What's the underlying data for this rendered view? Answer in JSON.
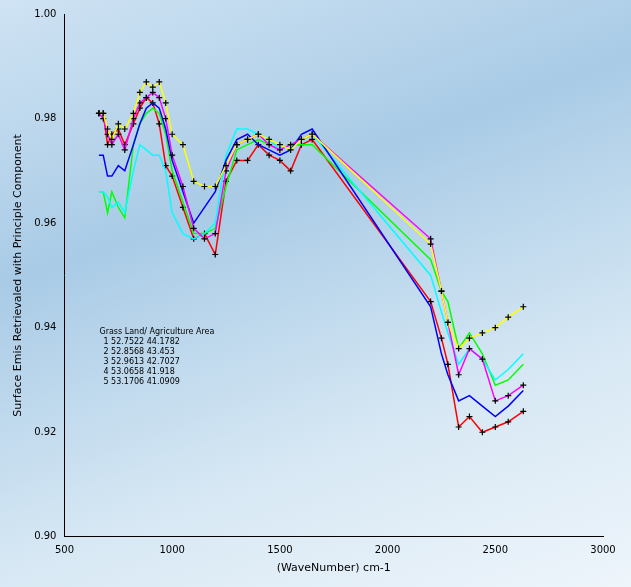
{
  "chart_data": {
    "type": "line",
    "x_label": "(WaveNumber) cm-1",
    "y_label": "Surface Emis Retrievaled with Principle Component",
    "legend_title": "Grass Land/ Agriculture Area",
    "legend": "lower left",
    "grid": false,
    "xlim": [
      500,
      3000
    ],
    "xticks": [
      500,
      1000,
      1500,
      2000,
      2500,
      3000
    ],
    "ylim": [
      0.9,
      1.0
    ],
    "yticks": [
      {
        "value": 0.9,
        "label": "0.90"
      },
      {
        "value": 0.92,
        "label": "0.92"
      },
      {
        "value": 0.94,
        "label": "0.94"
      },
      {
        "value": 0.96,
        "label": "0.96"
      },
      {
        "value": 0.98,
        "label": "0.98"
      },
      {
        "value": 1.0,
        "label": "1.00"
      }
    ],
    "x": [
      660,
      680,
      700,
      720,
      750,
      780,
      820,
      850,
      880,
      910,
      940,
      970,
      1000,
      1050,
      1100,
      1150,
      1200,
      1250,
      1300,
      1350,
      1400,
      1450,
      1500,
      1550,
      1600,
      1650,
      2200,
      2250,
      2280,
      2330,
      2380,
      2440,
      2500,
      2560,
      2630
    ],
    "series": [
      {
        "name": "1 52.7522 44.1782",
        "color": "#ffff00",
        "marker": "plus",
        "values": [
          0.981,
          0.981,
          0.978,
          0.976,
          0.979,
          0.978,
          0.981,
          0.985,
          0.987,
          0.986,
          0.987,
          0.983,
          0.977,
          0.975,
          0.968,
          0.967,
          0.967,
          0.971,
          0.975,
          0.976,
          0.977,
          0.976,
          0.975,
          0.974,
          0.976,
          0.977,
          0.956,
          0.947,
          0.941,
          0.936,
          0.938,
          0.939,
          0.94,
          0.942,
          0.944
        ]
      },
      {
        "name": "2 52.8568 43.453",
        "color": "#ff00ff",
        "marker": "plus",
        "values": [
          0.981,
          0.98,
          0.977,
          0.975,
          0.977,
          0.974,
          0.98,
          0.983,
          0.984,
          0.985,
          0.984,
          0.98,
          0.973,
          0.967,
          0.959,
          0.957,
          0.958,
          0.97,
          0.975,
          0.976,
          0.977,
          0.975,
          0.974,
          0.975,
          0.976,
          0.977,
          0.957,
          0.947,
          0.941,
          0.931,
          0.936,
          0.934,
          0.926,
          0.927,
          0.929
        ]
      },
      {
        "name": "3 52.9613 42.7027",
        "color": "#0000ff",
        "marker": "none",
        "values": [
          0.973,
          0.973,
          0.969,
          0.969,
          0.971,
          0.97,
          0.975,
          0.979,
          0.982,
          0.983,
          0.982,
          0.978,
          0.972,
          0.966,
          0.96,
          0.963,
          0.966,
          0.972,
          0.976,
          0.977,
          0.975,
          0.974,
          0.973,
          0.974,
          0.977,
          0.978,
          0.944,
          0.935,
          0.931,
          0.926,
          0.927,
          0.925,
          0.923,
          0.925,
          0.928
        ]
      },
      {
        "name": "4 53.0658 41.918",
        "color": "#00ffff",
        "marker": "none",
        "values": [
          0.966,
          0.966,
          0.965,
          0.963,
          0.964,
          0.962,
          0.97,
          0.975,
          0.974,
          0.973,
          0.973,
          0.97,
          0.962,
          0.958,
          0.957,
          0.958,
          0.96,
          0.973,
          0.978,
          0.978,
          0.977,
          0.976,
          0.974,
          0.975,
          0.976,
          0.977,
          0.95,
          0.943,
          0.939,
          0.933,
          0.936,
          0.934,
          0.93,
          0.932,
          0.935
        ]
      },
      {
        "name": "5 53.1706 41.0909",
        "color": "#00ff00",
        "marker": "none",
        "values": [
          0.966,
          0.966,
          0.962,
          0.966,
          0.963,
          0.961,
          0.975,
          0.979,
          0.981,
          0.982,
          0.981,
          0.977,
          0.97,
          0.964,
          0.958,
          0.958,
          0.959,
          0.967,
          0.974,
          0.975,
          0.976,
          0.975,
          0.974,
          0.975,
          0.975,
          0.975,
          0.953,
          0.947,
          0.945,
          0.936,
          0.939,
          0.935,
          0.929,
          0.93,
          0.933
        ]
      },
      {
        "color": "#ff0000",
        "marker": "plus",
        "values": [
          0.981,
          0.981,
          0.975,
          0.977,
          0.978,
          0.975,
          0.979,
          0.982,
          0.984,
          0.983,
          0.979,
          0.971,
          0.969,
          0.963,
          0.957,
          0.958,
          0.954,
          0.968,
          0.972,
          0.972,
          0.975,
          0.973,
          0.972,
          0.97,
          0.975,
          0.976,
          0.945,
          0.938,
          0.933,
          0.921,
          0.923,
          0.92,
          0.921,
          0.922,
          0.924
        ]
      }
    ]
  }
}
